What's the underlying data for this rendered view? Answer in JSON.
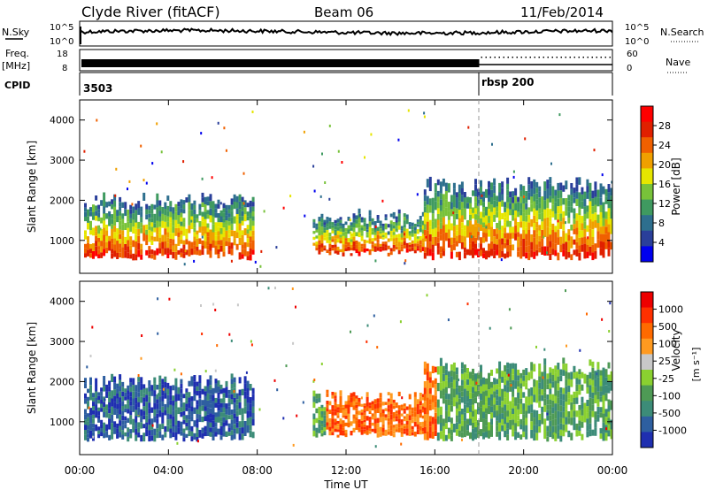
{
  "header": {
    "station": "Clyde River (fitACF)",
    "beam": "Beam 06",
    "date": "11/Feb/2014"
  },
  "aux_panels": {
    "nsky_label": "N.Sky",
    "nsky_ticks": [
      "10^5",
      "10^0"
    ],
    "nsearch_label": "N.Search",
    "freq_label": "Freq.",
    "freq_unit": "[MHz]",
    "freq_ticks": [
      "18",
      "8"
    ],
    "nave_label": "Nave",
    "nave_ticks": [
      "60",
      "0"
    ],
    "cpid_label": "CPID",
    "cpid_segments": [
      {
        "name": "3503",
        "start_hour": 0
      },
      {
        "name": "rbsp 200",
        "start_hour": 18
      }
    ]
  },
  "colors": {
    "power": [
      "#0000ee",
      "#2a3f9a",
      "#2e6f8e",
      "#3f9a60",
      "#78c23a",
      "#e6e600",
      "#f0a000",
      "#f06000",
      "#e02000",
      "#ff0000"
    ],
    "velocity": [
      "#1f2fb0",
      "#2e5fa0",
      "#3c8c78",
      "#4e9a55",
      "#8ad030",
      "#c8c8c8",
      "#ff9a20",
      "#ff6a00",
      "#ff3000",
      "#ee0000"
    ],
    "trace": "#000000"
  },
  "chart_data": [
    {
      "type": "heatmap",
      "title": "Power",
      "ylabel": "Slant Range [km]",
      "colorbar_label": "Power [dB]",
      "colorbar_ticks": [
        "28",
        "24",
        "20",
        "16",
        "12",
        "8",
        "4"
      ],
      "ylim": [
        180,
        4500
      ],
      "yticks": [
        "4000",
        "3000",
        "2000",
        "1000"
      ],
      "xlim": [
        0,
        24
      ],
      "echo_bands": [
        {
          "start_hour": 0.2,
          "end_hour": 7.8,
          "range_km": [
            500,
            2200
          ]
        },
        {
          "start_hour": 10.5,
          "end_hour": 15.5,
          "range_km": [
            600,
            1800
          ]
        },
        {
          "start_hour": 15.5,
          "end_hour": 24,
          "range_km": [
            500,
            2600
          ]
        }
      ]
    },
    {
      "type": "heatmap",
      "title": "Velocity",
      "ylabel": "Slant Range [km]",
      "colorbar_label": "Velocity",
      "colorbar_unit": "[m s⁻¹]",
      "colorbar_ticks": [
        "1000",
        "500",
        "100",
        "25",
        "-25",
        "-100",
        "-500",
        "-1000"
      ],
      "ylim": [
        180,
        4500
      ],
      "yticks": [
        "4000",
        "3000",
        "2000",
        "1000"
      ],
      "xlim": [
        0,
        24
      ],
      "echo_bands": [
        {
          "start_hour": 0.2,
          "end_hour": 7.8,
          "range_km": [
            500,
            2200
          ]
        },
        {
          "start_hour": 10.5,
          "end_hour": 15.5,
          "range_km": [
            600,
            1800
          ]
        },
        {
          "start_hour": 15.5,
          "end_hour": 24,
          "range_km": [
            500,
            2600
          ]
        }
      ]
    }
  ],
  "xaxis": {
    "label": "Time UT",
    "ticks": [
      "00:00",
      "04:00",
      "08:00",
      "12:00",
      "16:00",
      "20:00",
      "00:00"
    ]
  }
}
